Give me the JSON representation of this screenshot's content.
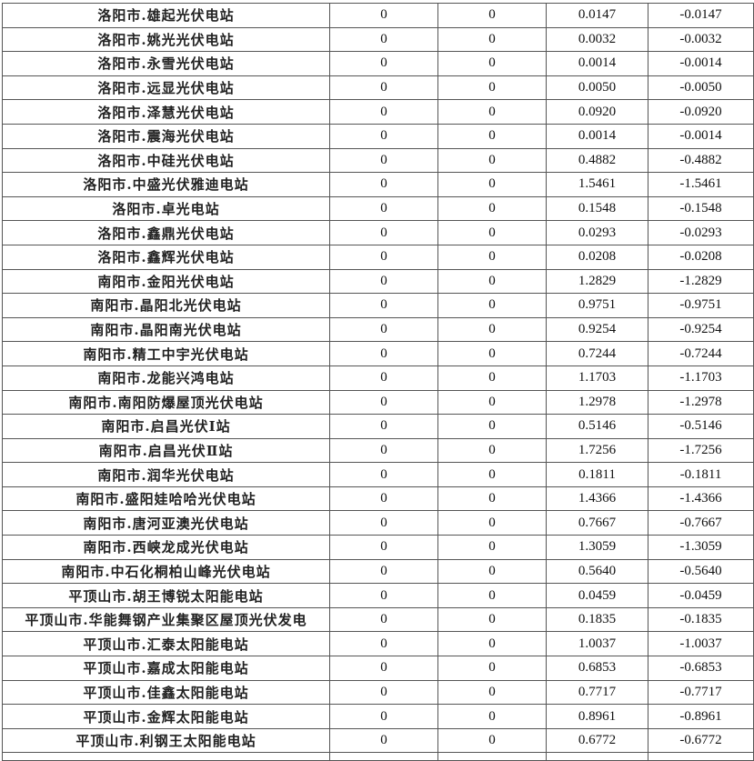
{
  "rows": [
    {
      "name": "洛阳市.雄起光伏电站",
      "a": "0",
      "b": "0",
      "c": "0.0147",
      "d": "-0.0147"
    },
    {
      "name": "洛阳市.姚光光伏电站",
      "a": "0",
      "b": "0",
      "c": "0.0032",
      "d": "-0.0032"
    },
    {
      "name": "洛阳市.永雪光伏电站",
      "a": "0",
      "b": "0",
      "c": "0.0014",
      "d": "-0.0014"
    },
    {
      "name": "洛阳市.远显光伏电站",
      "a": "0",
      "b": "0",
      "c": "0.0050",
      "d": "-0.0050"
    },
    {
      "name": "洛阳市.泽慧光伏电站",
      "a": "0",
      "b": "0",
      "c": "0.0920",
      "d": "-0.0920"
    },
    {
      "name": "洛阳市.震海光伏电站",
      "a": "0",
      "b": "0",
      "c": "0.0014",
      "d": "-0.0014"
    },
    {
      "name": "洛阳市.中硅光伏电站",
      "a": "0",
      "b": "0",
      "c": "0.4882",
      "d": "-0.4882"
    },
    {
      "name": "洛阳市.中盛光伏雅迪电站",
      "a": "0",
      "b": "0",
      "c": "1.5461",
      "d": "-1.5461"
    },
    {
      "name": "洛阳市.卓光电站",
      "a": "0",
      "b": "0",
      "c": "0.1548",
      "d": "-0.1548"
    },
    {
      "name": "洛阳市.鑫鼎光伏电站",
      "a": "0",
      "b": "0",
      "c": "0.0293",
      "d": "-0.0293"
    },
    {
      "name": "洛阳市.鑫辉光伏电站",
      "a": "0",
      "b": "0",
      "c": "0.0208",
      "d": "-0.0208"
    },
    {
      "name": "南阳市.金阳光伏电站",
      "a": "0",
      "b": "0",
      "c": "1.2829",
      "d": "-1.2829"
    },
    {
      "name": "南阳市.晶阳北光伏电站",
      "a": "0",
      "b": "0",
      "c": "0.9751",
      "d": "-0.9751"
    },
    {
      "name": "南阳市.晶阳南光伏电站",
      "a": "0",
      "b": "0",
      "c": "0.9254",
      "d": "-0.9254"
    },
    {
      "name": "南阳市.精工中宇光伏电站",
      "a": "0",
      "b": "0",
      "c": "0.7244",
      "d": "-0.7244"
    },
    {
      "name": "南阳市.龙能兴鸿电站",
      "a": "0",
      "b": "0",
      "c": "1.1703",
      "d": "-1.1703"
    },
    {
      "name": "南阳市.南阳防爆屋顶光伏电站",
      "a": "0",
      "b": "0",
      "c": "1.2978",
      "d": "-1.2978"
    },
    {
      "name": "南阳市.启昌光伏Ⅰ站",
      "a": "0",
      "b": "0",
      "c": "0.5146",
      "d": "-0.5146"
    },
    {
      "name": "南阳市.启昌光伏Ⅱ站",
      "a": "0",
      "b": "0",
      "c": "1.7256",
      "d": "-1.7256"
    },
    {
      "name": "南阳市.润华光伏电站",
      "a": "0",
      "b": "0",
      "c": "0.1811",
      "d": "-0.1811"
    },
    {
      "name": "南阳市.盛阳娃哈哈光伏电站",
      "a": "0",
      "b": "0",
      "c": "1.4366",
      "d": "-1.4366"
    },
    {
      "name": "南阳市.唐河亚澳光伏电站",
      "a": "0",
      "b": "0",
      "c": "0.7667",
      "d": "-0.7667"
    },
    {
      "name": "南阳市.西峡龙成光伏电站",
      "a": "0",
      "b": "0",
      "c": "1.3059",
      "d": "-1.3059"
    },
    {
      "name": "南阳市.中石化桐柏山峰光伏电站",
      "a": "0",
      "b": "0",
      "c": "0.5640",
      "d": "-0.5640"
    },
    {
      "name": "平顶山市.胡王博锐太阳能电站",
      "a": "0",
      "b": "0",
      "c": "0.0459",
      "d": "-0.0459"
    },
    {
      "name": "平顶山市.华能舞钢产业集聚区屋顶光伏发电",
      "a": "0",
      "b": "0",
      "c": "0.1835",
      "d": "-0.1835"
    },
    {
      "name": "平顶山市.汇泰太阳能电站",
      "a": "0",
      "b": "0",
      "c": "1.0037",
      "d": "-1.0037"
    },
    {
      "name": "平顶山市.嘉成太阳能电站",
      "a": "0",
      "b": "0",
      "c": "0.6853",
      "d": "-0.6853"
    },
    {
      "name": "平顶山市.佳鑫太阳能电站",
      "a": "0",
      "b": "0",
      "c": "0.7717",
      "d": "-0.7717"
    },
    {
      "name": "平顶山市.金辉太阳能电站",
      "a": "0",
      "b": "0",
      "c": "0.8961",
      "d": "-0.8961"
    },
    {
      "name": "平顶山市.利钢王太阳能电站",
      "a": "0",
      "b": "0",
      "c": "0.6772",
      "d": "-0.6772"
    }
  ]
}
